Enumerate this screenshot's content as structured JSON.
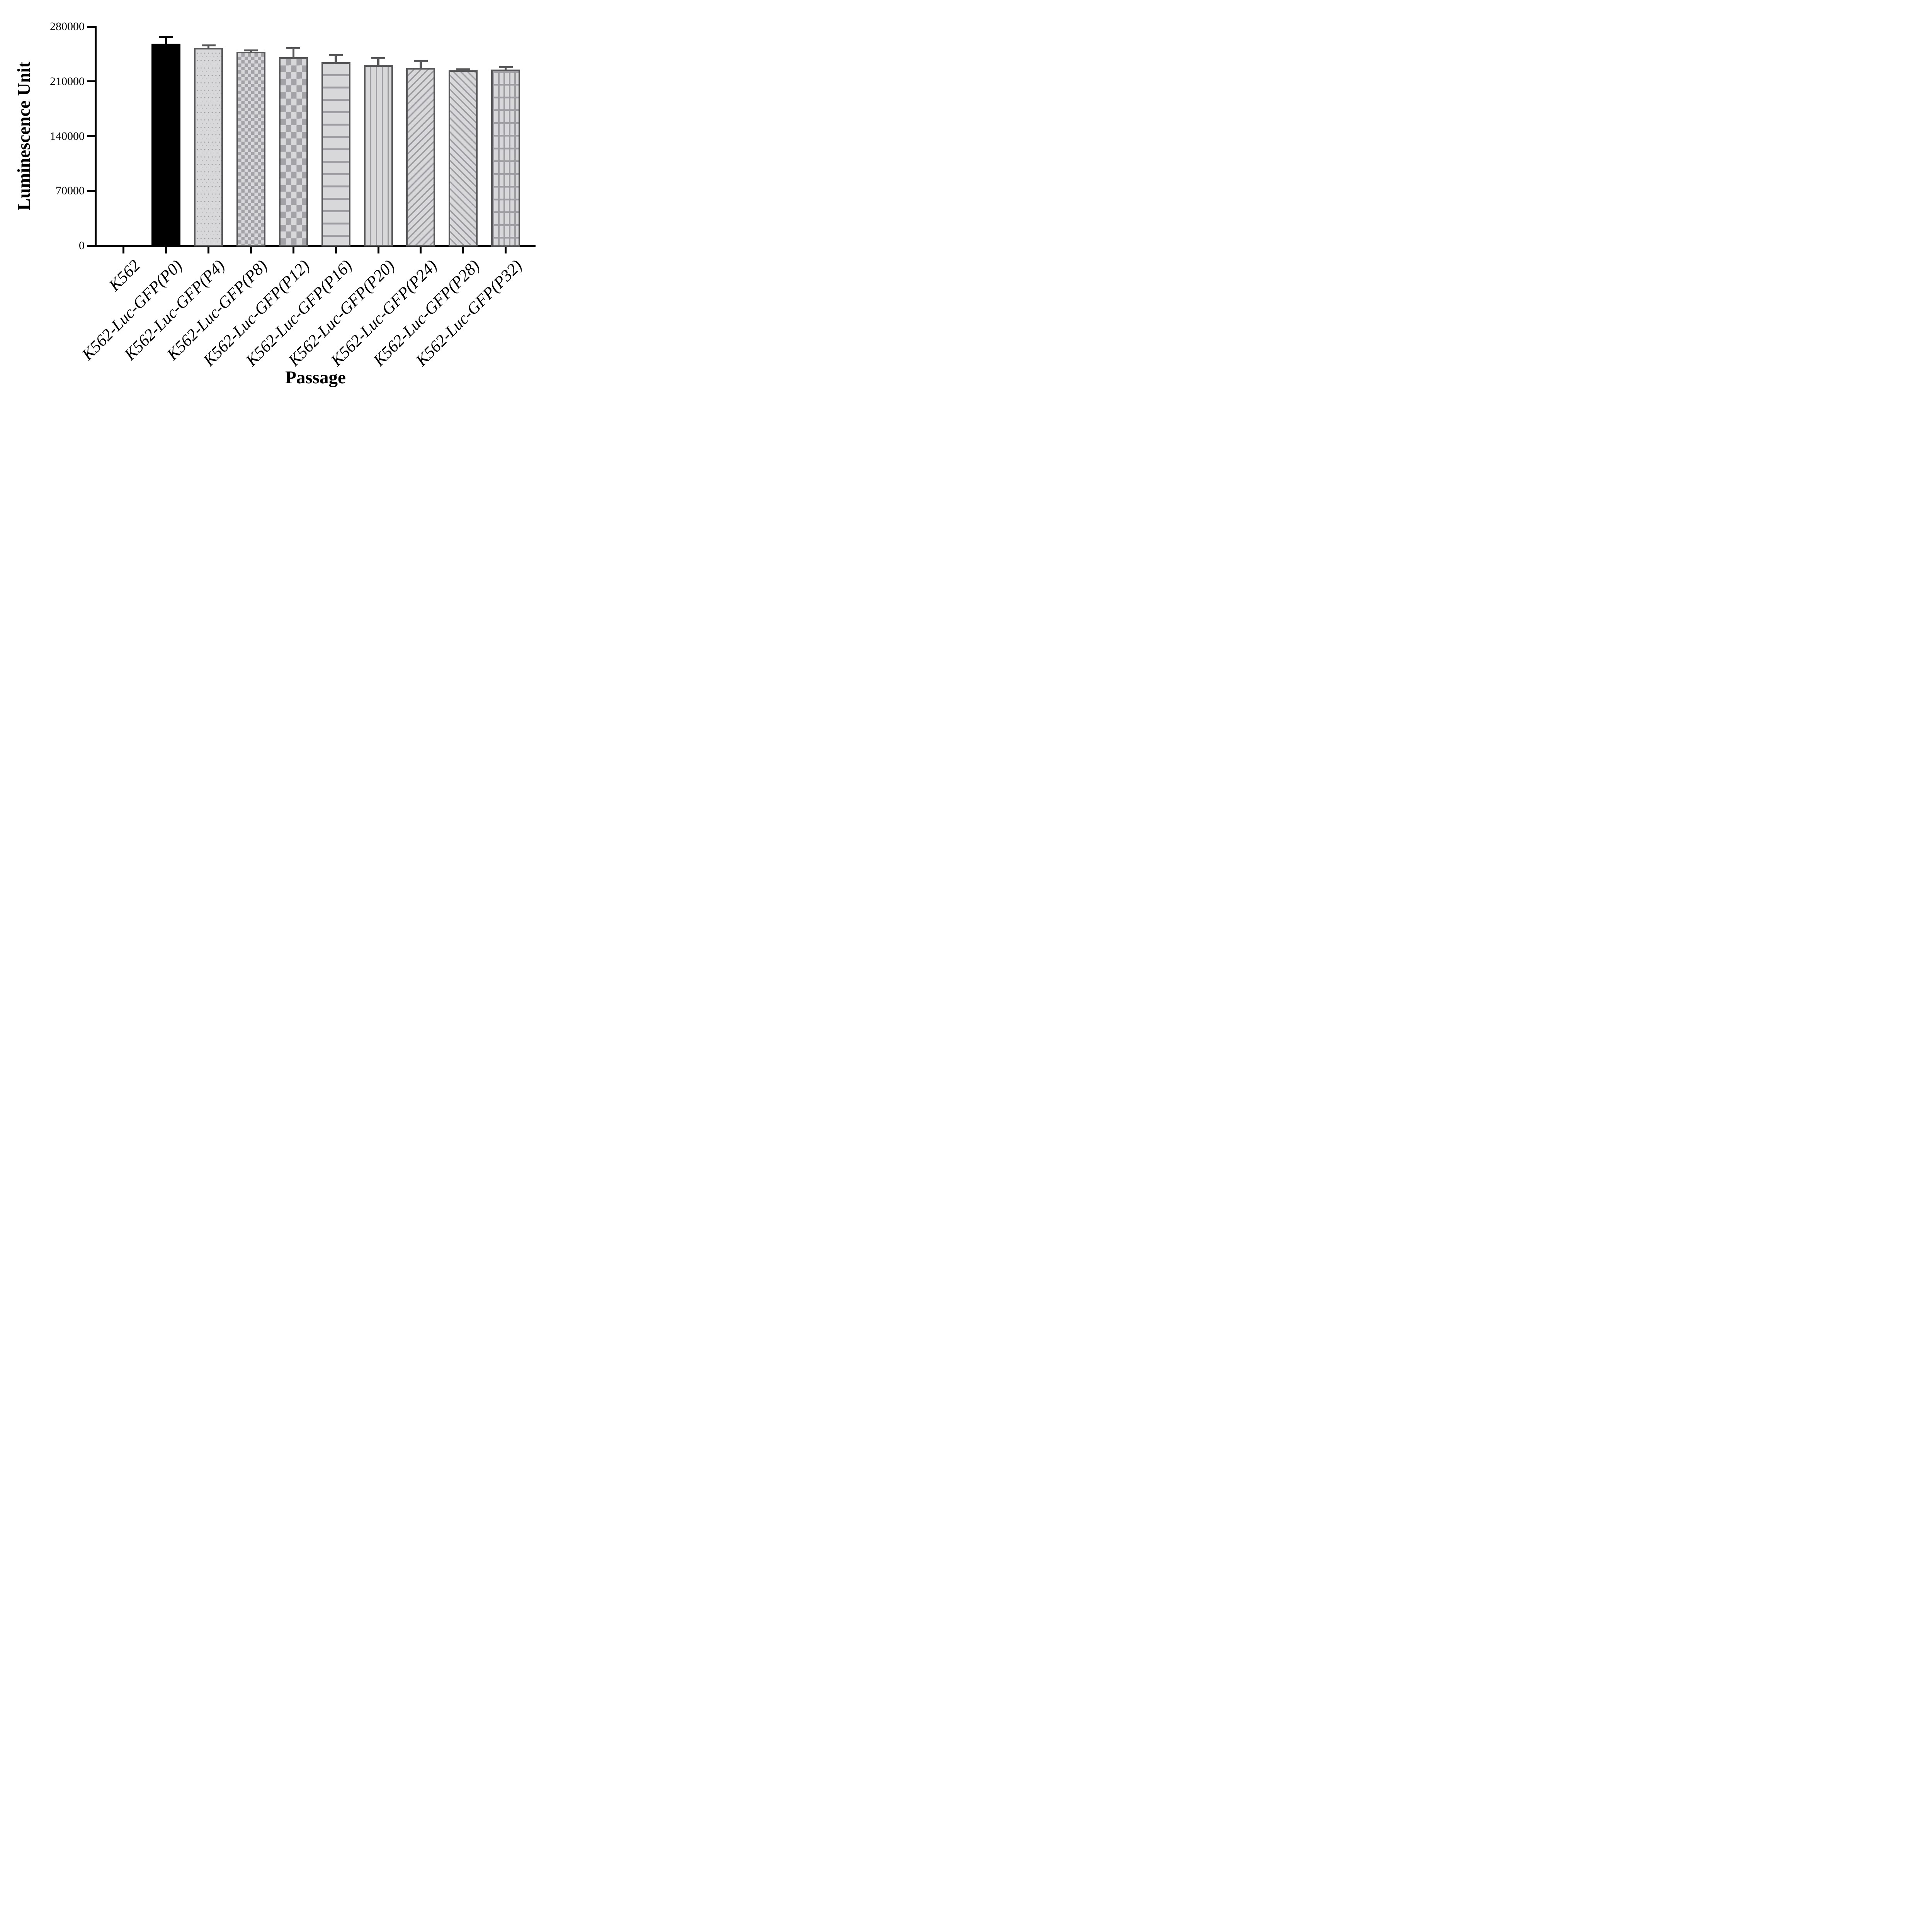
{
  "figure": {
    "background": "#ffffff",
    "axis_color": "#000000",
    "bar_border_color": "#57575a",
    "bar_fill_color": "#d8d8da",
    "pattern_color": "#9d9da2",
    "solid_bar_color": "#000000"
  },
  "chart_data": {
    "type": "bar",
    "title": "",
    "xlabel": "Passage",
    "ylabel": "Luminescence Unit",
    "ylim": [
      0,
      280000
    ],
    "yticks": [
      0,
      70000,
      140000,
      210000,
      280000
    ],
    "ytick_labels": [
      "0",
      "70000",
      "140000",
      "210000",
      "280000"
    ],
    "grid": false,
    "legend_position": "none",
    "error_bars": "upper only",
    "categories": [
      "K562",
      "K562-Luc-GFP(P0)",
      "K562-Luc-GFP(P4)",
      "K562-Luc-GFP(P8)",
      "K562-Luc-GFP(P12)",
      "K562-Luc-GFP(P16)",
      "K562-Luc-GFP(P20)",
      "K562-Luc-GFP(P24)",
      "K562-Luc-GFP(P28)",
      "K562-Luc-GFP(P32)"
    ],
    "series": [
      {
        "name": "Luminescence",
        "values": [
          0,
          258500,
          253000,
          248000,
          241000,
          234500,
          230500,
          227000,
          224000,
          225000
        ],
        "errors_plus": [
          0,
          8000,
          3200,
          1700,
          11500,
          9000,
          9200,
          9000,
          1200,
          3400
        ],
        "bar_patterns": [
          "none",
          "solid-black",
          "dots",
          "checker-small",
          "checker-large",
          "horizontal-lines",
          "vertical-lines",
          "diagonal-up",
          "diagonal-down",
          "grid"
        ]
      }
    ]
  }
}
